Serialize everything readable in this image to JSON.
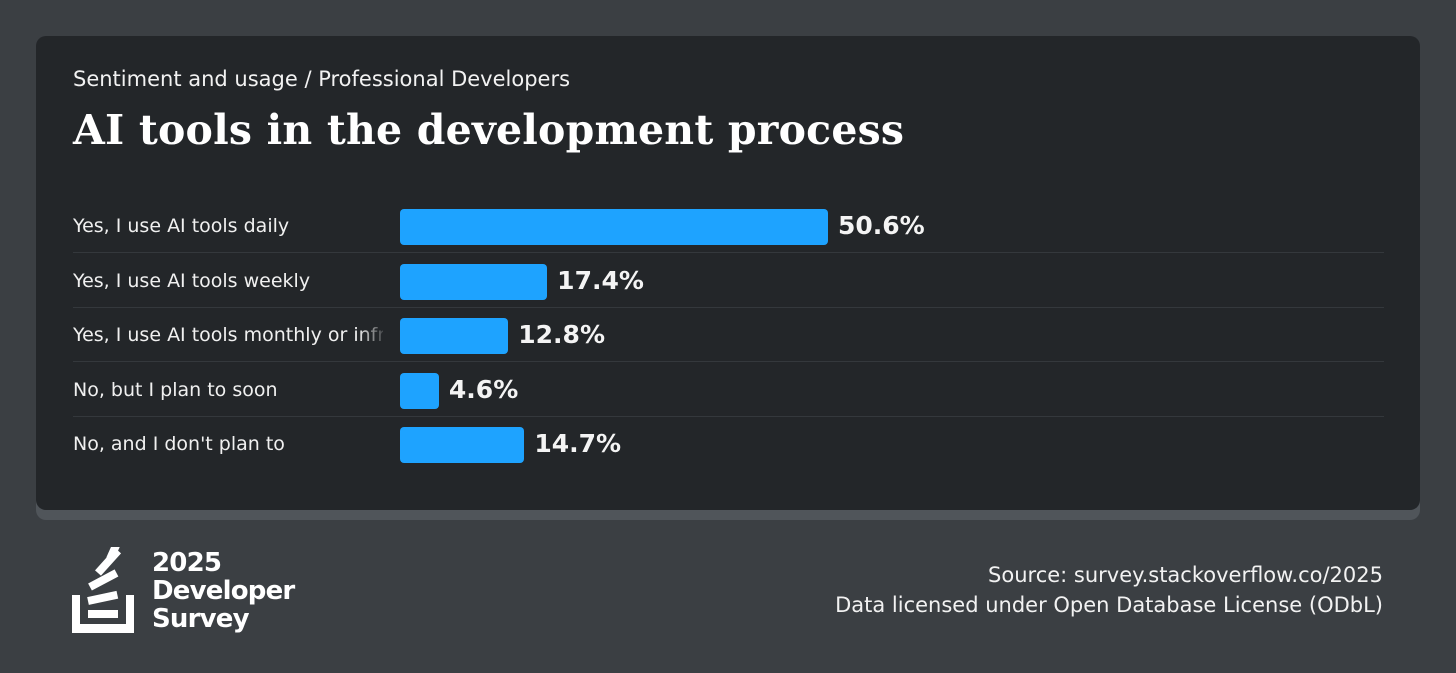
{
  "subtitle": "Sentiment and usage / Professional Developers",
  "title": "AI tools in the development process",
  "colors": {
    "bar": "#1ea3ff",
    "card": "#232629",
    "background": "#3b3f43"
  },
  "chart_data": {
    "type": "bar",
    "orientation": "horizontal",
    "title": "AI tools in the development process",
    "categories": [
      "Yes, I use AI tools daily",
      "Yes, I use AI tools weekly",
      "Yes, I use AI tools monthly or infrequently",
      "No, but I plan to soon",
      "No, and I don't plan to"
    ],
    "values": [
      50.6,
      17.4,
      12.8,
      4.6,
      14.7
    ],
    "value_labels": [
      "50.6%",
      "17.4%",
      "12.8%",
      "4.6%",
      "14.7%"
    ],
    "unit": "%",
    "xlim": [
      0,
      50.6
    ]
  },
  "logo": {
    "line1": "2025",
    "line2": "Developer",
    "line3": "Survey"
  },
  "footer": {
    "source": "Source: survey.stackoverflow.co/2025",
    "license": "Data licensed under Open Database License (ODbL)"
  }
}
